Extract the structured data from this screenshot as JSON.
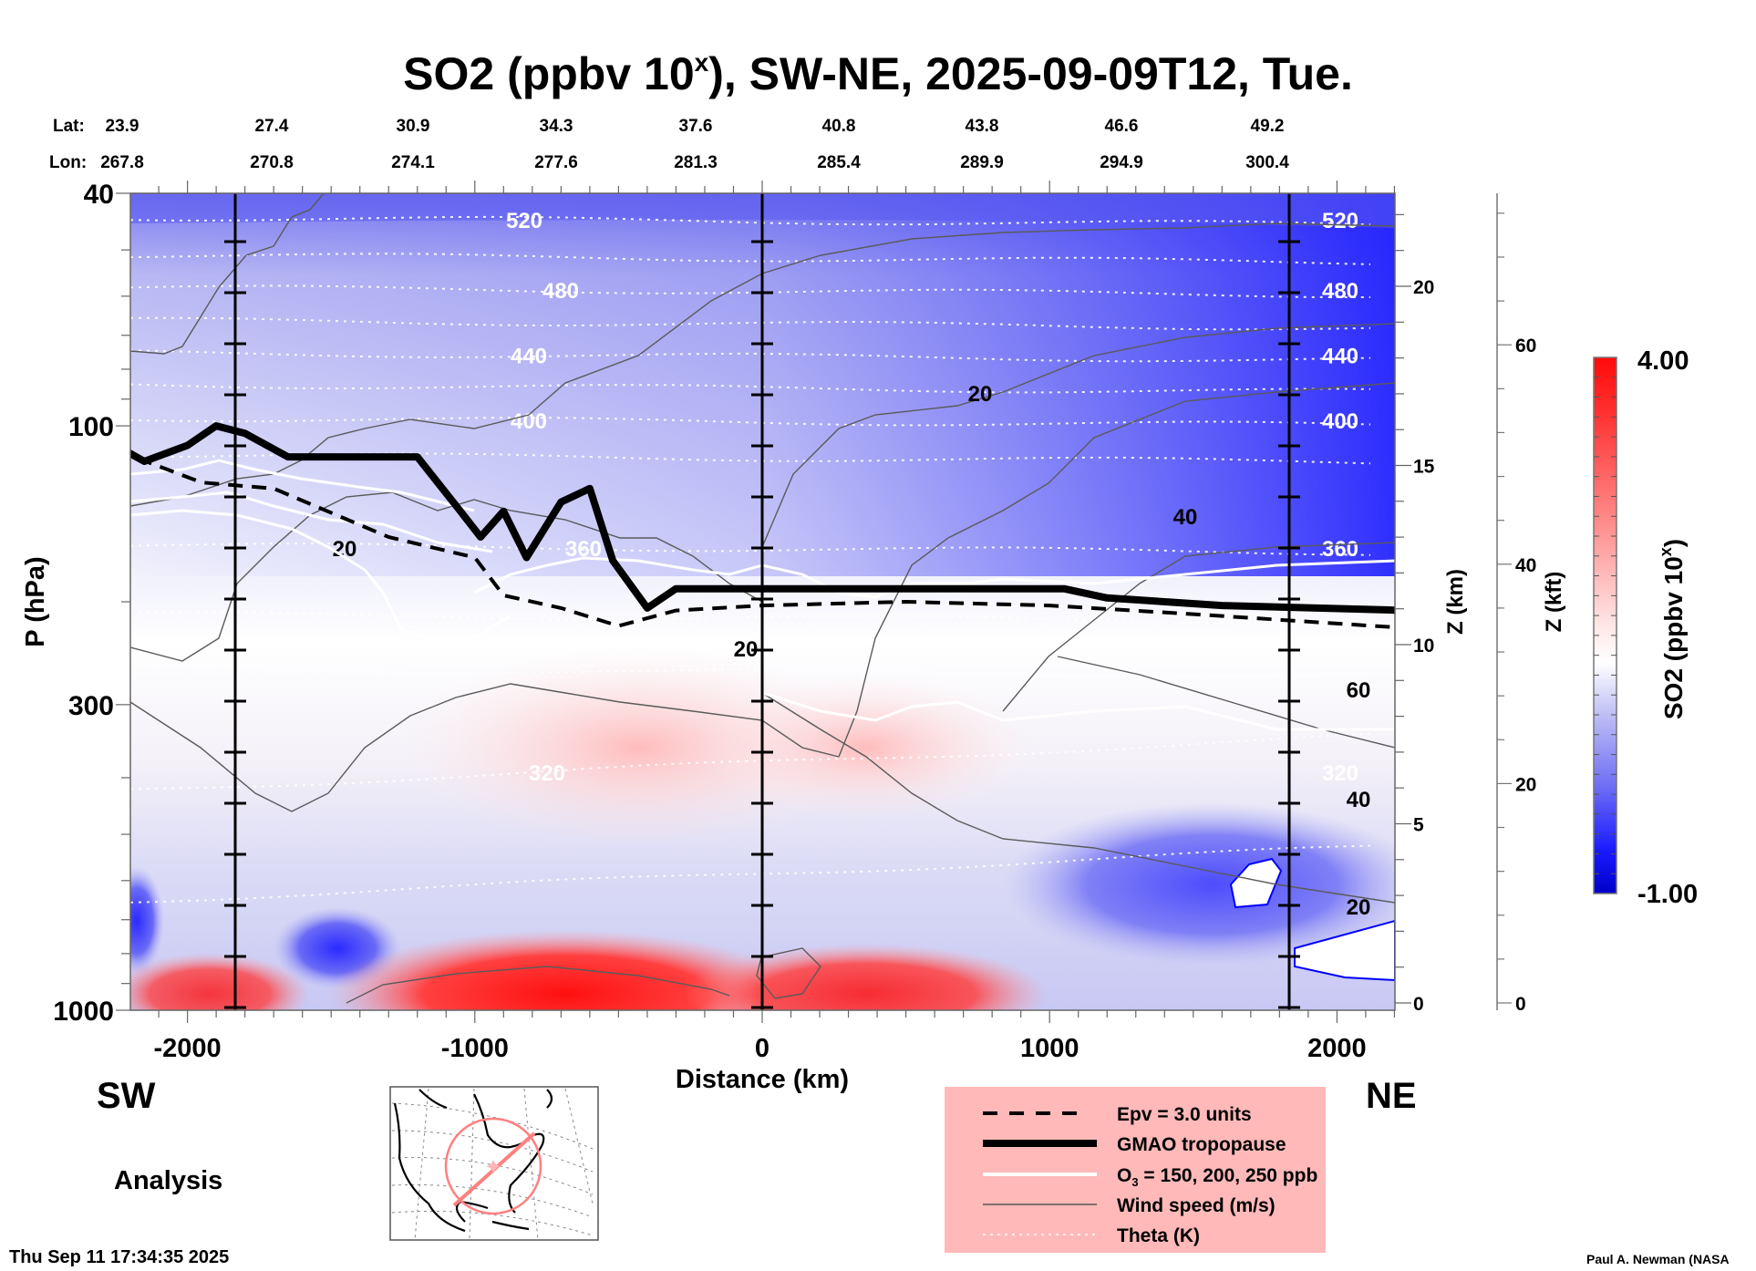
{
  "chart_data": {
    "type": "heatmap",
    "title": "SO2 (ppbv 10",
    "title_superscript": "x",
    "title_suffix": "), SW-NE, 2025-09-09T12, Tue.",
    "xlabel": "Distance (km)",
    "ylabel": "P (hPa)",
    "xlim": [
      -2250,
      2250
    ],
    "ylim": [
      1000,
      40
    ],
    "yscale": "log",
    "xticks": [
      -2000,
      -1000,
      0,
      1000,
      2000
    ],
    "xtick_labels": [
      "-2000",
      "-1000",
      "0",
      "1000",
      "2000"
    ],
    "yticks": [
      40,
      100,
      300,
      1000
    ],
    "ytick_labels": [
      "40",
      "100",
      "300",
      "1000"
    ],
    "right_axis_km": {
      "label": "Z (km)",
      "ticks": [
        0,
        5,
        10,
        15,
        20
      ],
      "tick_labels": [
        "0",
        "5",
        "10",
        "15",
        "20"
      ]
    },
    "right_axis_kft": {
      "label": "Z (kft)",
      "ticks": [
        0,
        20,
        40,
        60
      ],
      "tick_labels": [
        "0",
        "20",
        "40",
        "60"
      ]
    },
    "top_axis": {
      "lat_label": "Lat:",
      "lon_label": "Lon:",
      "lat": [
        "23.9",
        "27.4",
        "30.9",
        "34.3",
        "37.6",
        "40.8",
        "43.8",
        "46.6",
        "49.2"
      ],
      "lon": [
        "267.8",
        "270.8",
        "274.1",
        "277.6",
        "281.3",
        "285.4",
        "289.9",
        "294.9",
        "300.4"
      ]
    },
    "vertical_markers_km": [
      -1850,
      0,
      1850
    ],
    "colorbar": {
      "label": "SO2 (ppbv 10",
      "label_superscript": "x",
      "label_suffix": ")",
      "min": -1.0,
      "max": 4.0,
      "min_label": "-1.00",
      "max_label": "4.00",
      "colors": [
        "#0000c8",
        "#ffffff",
        "#ff0000"
      ]
    },
    "theta_contours_K": [
      {
        "value": 520,
        "label": "520"
      },
      {
        "value": 480,
        "label": "480"
      },
      {
        "value": 440,
        "label": "440"
      },
      {
        "value": 400,
        "label": "400"
      },
      {
        "value": 360,
        "label": "360"
      },
      {
        "value": 320,
        "label": "320"
      }
    ],
    "wind_contours_ms": [
      {
        "value": 20,
        "label": "20"
      },
      {
        "value": 40,
        "label": "40"
      },
      {
        "value": 60,
        "label": "60"
      }
    ],
    "tropopause_hPa": [
      {
        "x": -2250,
        "p": 108
      },
      {
        "x": -2150,
        "p": 115
      },
      {
        "x": -2000,
        "p": 108
      },
      {
        "x": -1900,
        "p": 100
      },
      {
        "x": -1800,
        "p": 103
      },
      {
        "x": -1650,
        "p": 113
      },
      {
        "x": -1200,
        "p": 113
      },
      {
        "x": -1050,
        "p": 140
      },
      {
        "x": -980,
        "p": 155
      },
      {
        "x": -900,
        "p": 140
      },
      {
        "x": -820,
        "p": 168
      },
      {
        "x": -700,
        "p": 135
      },
      {
        "x": -600,
        "p": 128
      },
      {
        "x": -520,
        "p": 170
      },
      {
        "x": -400,
        "p": 205
      },
      {
        "x": -300,
        "p": 190
      },
      {
        "x": 0,
        "p": 190
      },
      {
        "x": 1050,
        "p": 190
      },
      {
        "x": 1200,
        "p": 197
      },
      {
        "x": 1600,
        "p": 203
      },
      {
        "x": 2250,
        "p": 207
      }
    ],
    "epv_3pvu_hPa": [
      {
        "x": -2250,
        "p": 110
      },
      {
        "x": -1950,
        "p": 125
      },
      {
        "x": -1700,
        "p": 128
      },
      {
        "x": -1300,
        "p": 155
      },
      {
        "x": -1000,
        "p": 168
      },
      {
        "x": -900,
        "p": 195
      },
      {
        "x": -700,
        "p": 205
      },
      {
        "x": -500,
        "p": 220
      },
      {
        "x": -300,
        "p": 207
      },
      {
        "x": 0,
        "p": 203
      },
      {
        "x": 500,
        "p": 200
      },
      {
        "x": 1000,
        "p": 203
      },
      {
        "x": 1500,
        "p": 210
      },
      {
        "x": 2250,
        "p": 222
      }
    ],
    "o3_contours_ppb": [
      "150",
      "200",
      "250"
    ]
  },
  "legend": {
    "items": [
      {
        "label": "Epv = 3.0 units",
        "style": "dashed"
      },
      {
        "label": "GMAO tropopause",
        "style": "thick"
      },
      {
        "label": "O",
        "sub": "3",
        "suffix": " = 150, 200, 250 ppb",
        "style": "white"
      },
      {
        "label": "Wind speed (m/s)",
        "style": "thin"
      },
      {
        "label": "Theta (K)",
        "style": "dotted"
      }
    ],
    "background": "#ffb9b9"
  },
  "labels": {
    "sw": "SW",
    "ne": "NE",
    "analysis": "Analysis",
    "timestamp": "Thu Sep 11 17:34:35 2025",
    "credit": "Paul A. Newman (NASA"
  },
  "minimap": {
    "description": "North America map with cross-section line SW-NE and circle"
  }
}
